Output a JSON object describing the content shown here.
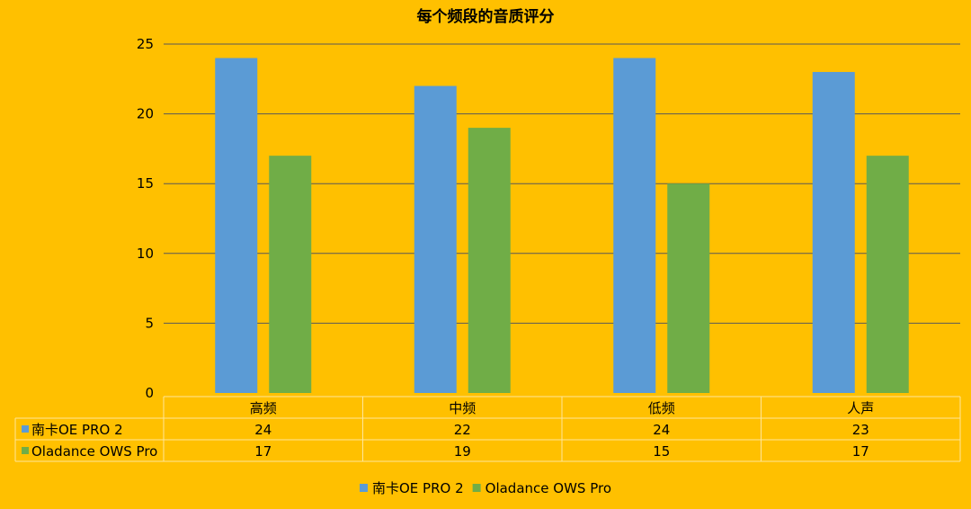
{
  "chart_data": {
    "type": "bar",
    "title": "每个频段的音质评分",
    "categories": [
      "高频",
      "中频",
      "低频",
      "人声"
    ],
    "series": [
      {
        "name": "南卡OE PRO 2",
        "values": [
          24,
          22,
          24,
          23
        ],
        "color": "#5B9BD5"
      },
      {
        "name": "Oladance OWS Pro",
        "values": [
          17,
          19,
          15,
          17
        ],
        "color": "#70AD47"
      }
    ],
    "ylim": [
      0,
      25
    ],
    "yticks": [
      0,
      5,
      10,
      15,
      20,
      25
    ],
    "grid": true,
    "data_table": true,
    "legend": "bottom"
  }
}
